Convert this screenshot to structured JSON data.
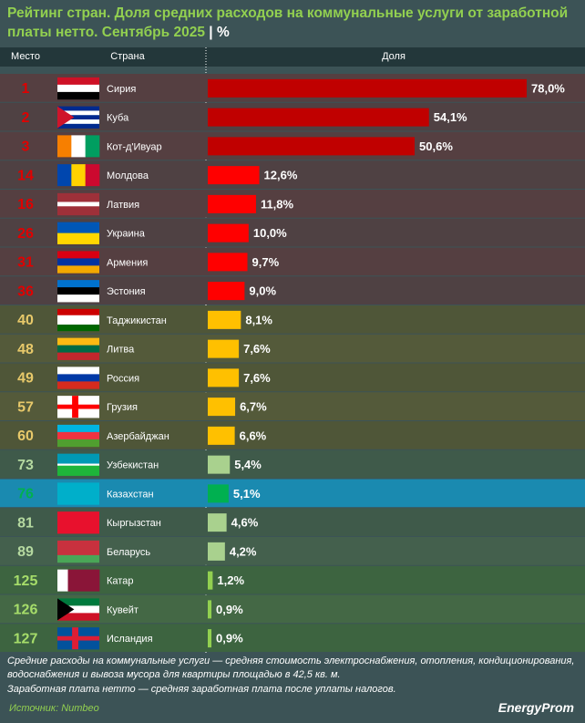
{
  "chart_data": {
    "type": "bar",
    "title": "Рейтинг стран. Доля средних расходов на коммунальные услуги от заработной платы нетто. Сентябрь 2025",
    "title_suffix": "| %",
    "columns": [
      "Место",
      "Страна",
      "Доля"
    ],
    "ranks": [
      1,
      2,
      3,
      14,
      16,
      26,
      31,
      36,
      40,
      48,
      49,
      57,
      60,
      73,
      76,
      81,
      89,
      125,
      126,
      127
    ],
    "categories": [
      "Сирия",
      "Куба",
      "Кот-д'Ивуар",
      "Молдова",
      "Латвия",
      "Украина",
      "Армения",
      "Эстония",
      "Таджикистан",
      "Литва",
      "Россия",
      "Грузия",
      "Азербайджан",
      "Узбекистан",
      "Казахстан",
      "Кыргызстан",
      "Беларусь",
      "Катар",
      "Кувейт",
      "Исландия"
    ],
    "values": [
      78.0,
      54.1,
      50.6,
      12.6,
      11.8,
      10.0,
      9.7,
      9.0,
      8.1,
      7.6,
      7.6,
      6.7,
      6.6,
      5.4,
      5.1,
      4.6,
      4.2,
      1.2,
      0.9,
      0.9
    ],
    "value_labels": [
      "78,0%",
      "54,1%",
      "50,6%",
      "12,6%",
      "11,8%",
      "10,0%",
      "9,7%",
      "9,0%",
      "8,1%",
      "7,6%",
      "7,6%",
      "6,7%",
      "6,6%",
      "5,4%",
      "5,1%",
      "4,6%",
      "4,2%",
      "1,2%",
      "0,9%",
      "0,9%"
    ],
    "colors": [
      "#c00000",
      "#c00000",
      "#c00000",
      "#ff0000",
      "#ff0000",
      "#ff0000",
      "#ff0000",
      "#ff0000",
      "#ffc000",
      "#ffc000",
      "#ffc000",
      "#ffc000",
      "#ffc000",
      "#a9d18e",
      "#00b050",
      "#a9d18e",
      "#a9d18e",
      "#92d050",
      "#92d050",
      "#92d050"
    ],
    "row_backgrounds": [
      "#553f41",
      "#4f4143",
      "#553f41",
      "#4f4143",
      "#553f41",
      "#4f4143",
      "#553f41",
      "#4f4143",
      "#4f5638",
      "#545a3a",
      "#4f5638",
      "#545a3a",
      "#4f5638",
      "#3f5a4a",
      "#1a8ab0",
      "#3f5a4a",
      "#44604d",
      "#3d6440",
      "#446845",
      "#3d6440"
    ],
    "rank_colors": [
      "#e00000",
      "#e00000",
      "#e00000",
      "#e00000",
      "#e00000",
      "#e00000",
      "#e00000",
      "#e00000",
      "#e8c96a",
      "#e8c96a",
      "#e8c96a",
      "#e8c96a",
      "#e8c96a",
      "#b5d9a0",
      "#00b050",
      "#b5d9a0",
      "#b5d9a0",
      "#a6dd6a",
      "#a6dd6a",
      "#a6dd6a"
    ],
    "notes": [
      "Средние расходы на коммунальные услуги — средняя стоимость электроснабжения, отопления, кондиционирования, водоснабжения и вывоза мусора для квартиры площадью в 42,5 кв. м.",
      "Заработная плата нетто — средняя заработная плата после уплаты налогов."
    ],
    "source": "Источник: Numbeo",
    "logo": "EnergyProm"
  }
}
